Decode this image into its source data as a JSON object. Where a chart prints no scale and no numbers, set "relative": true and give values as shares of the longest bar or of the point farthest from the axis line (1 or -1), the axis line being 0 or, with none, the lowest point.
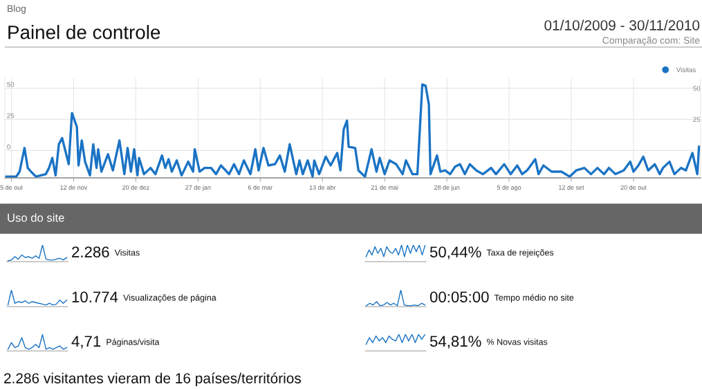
{
  "chart_data": [
    {
      "type": "line",
      "title": "Painel de controle",
      "subtitle": "Blog",
      "annotations": [
        "01/10/2009 - 30/11/2010",
        "Comparação com: Site"
      ],
      "x": [
        "2009-10-01",
        "2009-10-08",
        "2009-10-10",
        "2009-10-13",
        "2009-10-15",
        "2009-10-17",
        "2009-10-20",
        "2009-10-26",
        "2009-10-28",
        "2009-10-30",
        "2009-11-01",
        "2009-11-03",
        "2009-11-05",
        "2009-11-09",
        "2009-11-11",
        "2009-11-14",
        "2009-11-15",
        "2009-11-17",
        "2009-11-19",
        "2009-11-22",
        "2009-11-24",
        "2009-11-26",
        "2009-11-27",
        "2009-11-29",
        "2009-12-03",
        "2009-12-06",
        "2009-12-10",
        "2009-12-13",
        "2009-12-15",
        "2009-12-17",
        "2009-12-19",
        "2009-12-21",
        "2009-12-22",
        "2009-12-25",
        "2009-12-29",
        "2010-01-01",
        "2010-01-05",
        "2010-01-07",
        "2010-01-09",
        "2010-01-11",
        "2010-01-14",
        "2010-01-17",
        "2010-01-21",
        "2010-01-24",
        "2010-01-25",
        "2010-01-28",
        "2010-01-31",
        "2010-02-04",
        "2010-02-07",
        "2010-02-10",
        "2010-02-15",
        "2010-02-18",
        "2010-02-21",
        "2010-02-24",
        "2010-02-28",
        "2010-03-03",
        "2010-03-05",
        "2010-03-08",
        "2010-03-11",
        "2010-03-15",
        "2010-03-18",
        "2010-03-21",
        "2010-03-24",
        "2010-03-28",
        "2010-03-30",
        "2010-04-01",
        "2010-04-04",
        "2010-04-07",
        "2010-04-08",
        "2010-04-11",
        "2010-04-15",
        "2010-04-18",
        "2010-04-22",
        "2010-04-24",
        "2010-04-26",
        "2010-04-28",
        "2010-04-29",
        "2010-05-03",
        "2010-05-05",
        "2010-05-09",
        "2010-05-13",
        "2010-05-16",
        "2010-05-18",
        "2010-05-21",
        "2010-05-24",
        "2010-05-28",
        "2010-06-01",
        "2010-06-03",
        "2010-06-07",
        "2010-06-10",
        "2010-06-13",
        "2010-06-15",
        "2010-06-17",
        "2010-06-18",
        "2010-06-22",
        "2010-06-24",
        "2010-06-27",
        "2010-06-30",
        "2010-07-03",
        "2010-07-06",
        "2010-07-09",
        "2010-07-12",
        "2010-07-16",
        "2010-07-20",
        "2010-07-25",
        "2010-07-28",
        "2010-08-02",
        "2010-08-06",
        "2010-08-10",
        "2010-08-13",
        "2010-08-16",
        "2010-08-21",
        "2010-08-23",
        "2010-08-26",
        "2010-08-31",
        "2010-09-06",
        "2010-09-11",
        "2010-09-15",
        "2010-09-20",
        "2010-09-24",
        "2010-09-28",
        "2010-10-02",
        "2010-10-05",
        "2010-10-09",
        "2010-10-14",
        "2010-10-18",
        "2010-10-20",
        "2010-10-23",
        "2010-10-26",
        "2010-10-29",
        "2010-11-02",
        "2010-11-05",
        "2010-11-07",
        "2010-11-11",
        "2010-11-14",
        "2010-11-18",
        "2010-11-21",
        "2010-11-25",
        "2010-11-28",
        "2010-11-29"
      ],
      "series": [
        {
          "name": "Visitas",
          "color": "#1a73c4",
          "values": [
            -21,
            -21,
            -17,
            2,
            -14,
            -17,
            -21,
            -19,
            -14,
            -6,
            -20,
            5,
            10,
            -11,
            30,
            19,
            -12,
            8,
            -9,
            -20,
            5,
            -14,
            1,
            -17,
            -3,
            -16,
            8,
            -19,
            2,
            -17,
            1,
            -20,
            -6,
            -19,
            -14,
            -19,
            -4,
            -14,
            -7,
            -17,
            -8,
            -20,
            -9,
            -17,
            1,
            -17,
            -14,
            -14,
            -19,
            -12,
            -19,
            -11,
            -19,
            -8,
            -19,
            1,
            -16,
            2,
            -12,
            -11,
            -4,
            -17,
            5,
            -19,
            -8,
            -19,
            -8,
            -21,
            -8,
            -19,
            -5,
            -12,
            -2,
            -16,
            17,
            24,
            3,
            2,
            -16,
            -21,
            1,
            -17,
            -6,
            -19,
            -8,
            -11,
            -19,
            -8,
            -19,
            -19,
            53,
            52,
            37,
            -19,
            -4,
            -17,
            -16,
            -19,
            -13,
            -11,
            -19,
            -11,
            -16,
            -19,
            -14,
            -19,
            -11,
            -19,
            -12,
            -19,
            -16,
            -7,
            -19,
            -12,
            -17,
            -17,
            -21,
            -16,
            -14,
            -19,
            -14,
            -19,
            -14,
            -19,
            -16,
            -9,
            -17,
            -12,
            -5,
            -16,
            -11,
            -19,
            -14,
            -9,
            -19,
            -14,
            -16,
            -2,
            -19,
            3
          ]
        }
      ],
      "xlim": [
        "2009-10-01",
        "2010-11-30"
      ],
      "xticks": [
        {
          "value": "2009-10-05",
          "label": "5 de out"
        },
        {
          "value": "2009-11-12",
          "label": "12 de nov"
        },
        {
          "value": "2009-12-20",
          "label": "20 de dez"
        },
        {
          "value": "2010-01-27",
          "label": "27 de jan"
        },
        {
          "value": "2010-03-06",
          "label": "6 de mar"
        },
        {
          "value": "2010-04-13",
          "label": "13 de abr"
        },
        {
          "value": "2010-05-21",
          "label": "21 de mai"
        },
        {
          "value": "2010-06-28",
          "label": "28 de jun"
        },
        {
          "value": "2010-08-05",
          "label": "5 de ago"
        },
        {
          "value": "2010-09-12",
          "label": "12 de set"
        },
        {
          "value": "2010-10-20",
          "label": "20 de out"
        }
      ],
      "ylim": [
        -22,
        58
      ],
      "yticks": [
        0,
        25,
        50
      ],
      "y2lim": [
        -22,
        58
      ],
      "y2ticks": [
        25,
        50
      ],
      "grid": true,
      "legend": "top right",
      "line_style": "solid"
    },
    {
      "type": "other",
      "title": "Uso do site",
      "annotations": [
        "2.286 visitantes vieram de 16 países/territórios"
      ]
    },
    {
      "type": "line",
      "relative": true,
      "title": "2.286",
      "annotations": [
        "Visitas"
      ],
      "categories": [
        null,
        null,
        null,
        null,
        null,
        null,
        null,
        null,
        null,
        null,
        null,
        null,
        null,
        null,
        null,
        null,
        null,
        null
      ],
      "series": [
        {
          "color": "#1a73c4",
          "values": [
            0.05,
            0.1,
            0.3,
            0.15,
            0.4,
            0.25,
            0.3,
            0.2,
            0.35,
            0.2,
            1,
            0.15,
            0.1,
            0.1,
            0.15,
            0.2,
            0.1,
            0.25
          ]
        }
      ]
    },
    {
      "type": "line",
      "relative": true,
      "title": "10.774",
      "annotations": [
        "Visualizações de página"
      ],
      "categories": [
        null,
        null,
        null,
        null,
        null,
        null,
        null,
        null,
        null,
        null,
        null,
        null,
        null,
        null,
        null,
        null,
        null,
        null
      ],
      "series": [
        {
          "color": "#1a73c4",
          "values": [
            0.1,
            1,
            0.2,
            0.3,
            0.25,
            0.35,
            0.2,
            0.3,
            0.25,
            0.2,
            0.15,
            0.1,
            0.2,
            0.1,
            0.15,
            0.4,
            0.2,
            0.4
          ]
        }
      ]
    },
    {
      "type": "line",
      "relative": true,
      "title": "4,71",
      "annotations": [
        "Páginas/visita"
      ],
      "categories": [
        null,
        null,
        null,
        null,
        null,
        null,
        null,
        null,
        null,
        null,
        null,
        null,
        null,
        null,
        null,
        null,
        null,
        null
      ],
      "series": [
        {
          "color": "#1a73c4",
          "values": [
            0.1,
            0.5,
            0.2,
            0.3,
            0.8,
            0.2,
            0.1,
            0.2,
            0.4,
            0.2,
            1,
            0.1,
            0.2,
            0.1,
            0.2,
            0.3,
            0.1,
            0.2
          ]
        }
      ]
    },
    {
      "type": "line",
      "relative": true,
      "title": "50,44%",
      "annotations": [
        "Taxa de rejeições"
      ],
      "categories": [
        null,
        null,
        null,
        null,
        null,
        null,
        null,
        null,
        null,
        null,
        null,
        null,
        null,
        null,
        null,
        null,
        null,
        null,
        null,
        null,
        null
      ],
      "series": [
        {
          "color": "#1a73c4",
          "values": [
            0.3,
            0.7,
            0.4,
            0.9,
            0.5,
            0.8,
            0.3,
            0.9,
            0.6,
            0.5,
            0.8,
            0.4,
            1,
            0.3,
            1,
            0.5,
            1,
            0.6,
            1,
            0.4,
            1
          ]
        }
      ]
    },
    {
      "type": "line",
      "relative": true,
      "title": "00:05:00",
      "annotations": [
        "Tempo médio no site"
      ],
      "categories": [
        null,
        null,
        null,
        null,
        null,
        null,
        null,
        null,
        null,
        null,
        null,
        null,
        null,
        null,
        null,
        null,
        null,
        null
      ],
      "series": [
        {
          "color": "#1a73c4",
          "values": [
            0.05,
            0.2,
            0.1,
            0.3,
            0.05,
            0.1,
            0.25,
            0.1,
            0.2,
            0.05,
            1,
            0.1,
            0.05,
            0.05,
            0.1,
            0.05,
            0.2,
            0.1
          ]
        }
      ]
    },
    {
      "type": "line",
      "relative": true,
      "title": "54,81%",
      "annotations": [
        "% Novas visitas"
      ],
      "categories": [
        null,
        null,
        null,
        null,
        null,
        null,
        null,
        null,
        null,
        null,
        null,
        null,
        null,
        null,
        null,
        null,
        null,
        null,
        null
      ],
      "series": [
        {
          "color": "#1a73c4",
          "values": [
            0.4,
            0.8,
            0.5,
            0.9,
            0.6,
            0.8,
            0.5,
            0.9,
            0.7,
            0.6,
            1,
            0.5,
            1,
            0.6,
            1,
            0.5,
            1,
            0.7,
            1
          ]
        }
      ]
    }
  ]
}
